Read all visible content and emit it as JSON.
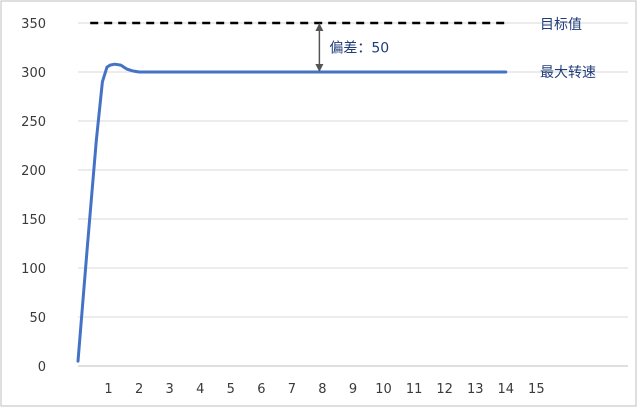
{
  "chart_data": {
    "type": "line",
    "xlim": [
      0,
      18
    ],
    "ylim": [
      0,
      350
    ],
    "x_ticks": [
      "1",
      "2",
      "3",
      "4",
      "5",
      "6",
      "7",
      "8",
      "9",
      "10",
      "11",
      "12",
      "13",
      "14",
      "15"
    ],
    "y_ticks": [
      "0",
      "50",
      "100",
      "150",
      "200",
      "250",
      "300",
      "350"
    ],
    "grid": true,
    "series": [
      {
        "name": "最大转速",
        "color": "#4472c4",
        "style": "solid",
        "x": [
          0.0,
          0.3,
          0.6,
          0.8,
          0.95,
          1.05,
          1.2,
          1.4,
          1.6,
          1.8,
          2.0,
          14.0
        ],
        "y": [
          5,
          120,
          230,
          290,
          305,
          307,
          308,
          307,
          303,
          301,
          300,
          300
        ]
      },
      {
        "name": "目标值",
        "color": "#000000",
        "style": "dashed",
        "x": [
          0.4,
          14.0
        ],
        "y": [
          350,
          350
        ]
      }
    ],
    "annotation": {
      "text": "偏差：50",
      "x": 7.9,
      "y_from": 350,
      "y_to": 300
    }
  },
  "labels": {
    "target": "目标值",
    "max_speed": "最大转速",
    "deviation": "偏差：50"
  }
}
